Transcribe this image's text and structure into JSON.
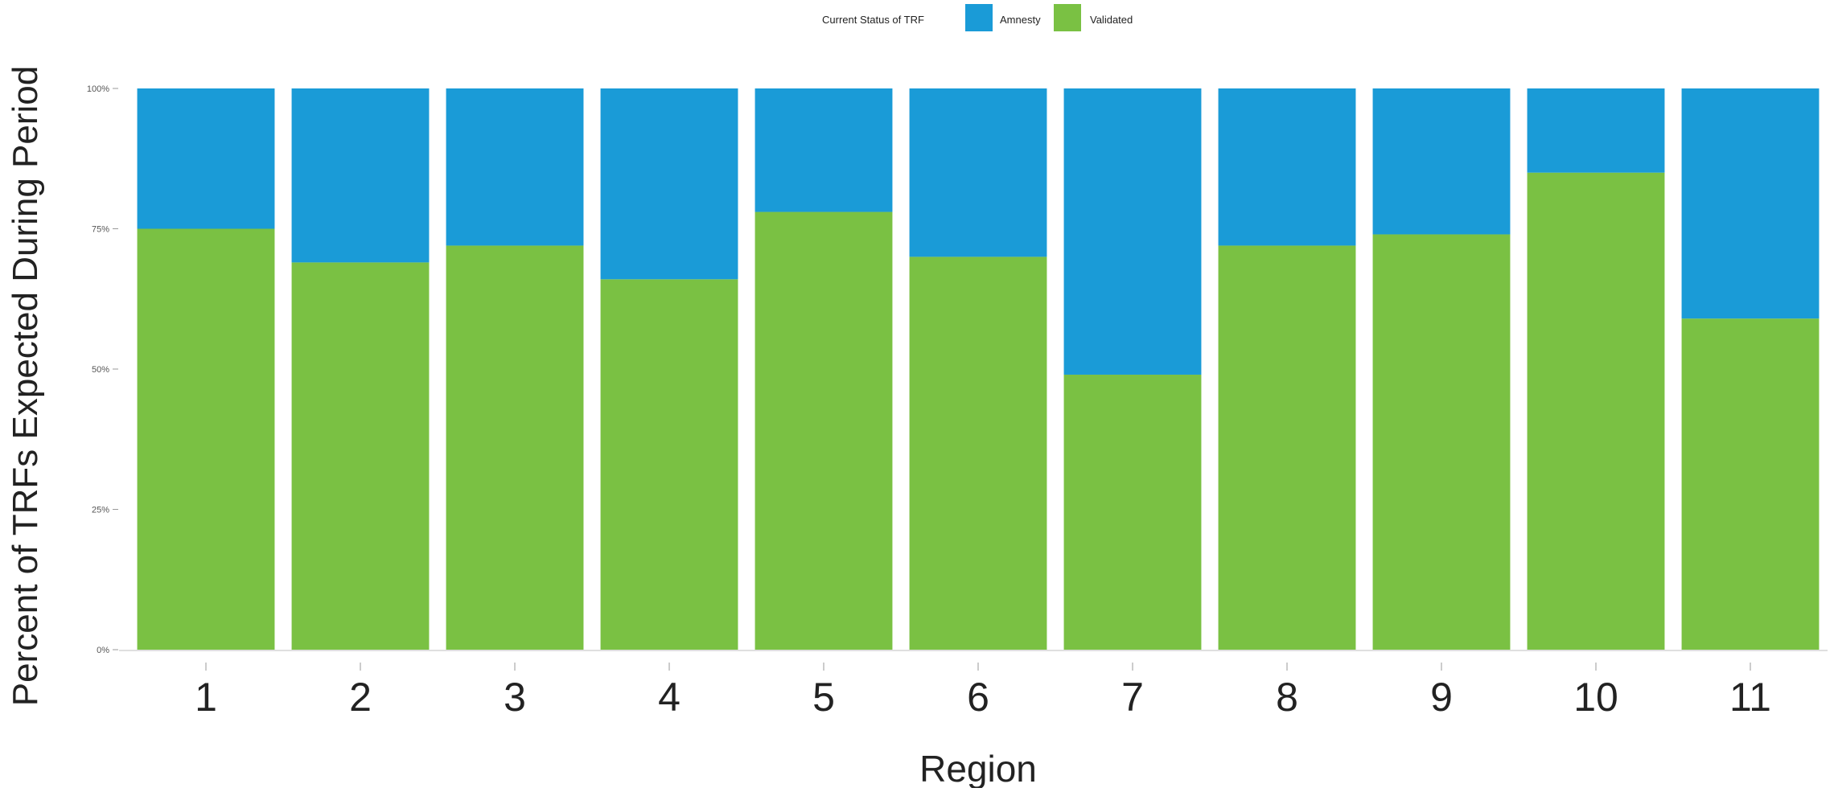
{
  "chart_data": {
    "type": "bar",
    "stacked": true,
    "categories": [
      "1",
      "2",
      "3",
      "4",
      "5",
      "6",
      "7",
      "8",
      "9",
      "10",
      "11"
    ],
    "series": [
      {
        "name": "Validated",
        "color": "#7ac143",
        "values": [
          75,
          69,
          72,
          66,
          78,
          70,
          49,
          72,
          74,
          85,
          59
        ]
      },
      {
        "name": "Amnesty",
        "color": "#1a9bd7",
        "values": [
          25,
          31,
          28,
          34,
          22,
          30,
          51,
          28,
          26,
          15,
          41
        ]
      }
    ],
    "xlabel": "Region",
    "ylabel": "Percent of TRFs Expected During Period",
    "ylim": [
      0,
      100
    ],
    "yticks": [
      "0%",
      "25%",
      "50%",
      "75%",
      "100%"
    ],
    "ytick_values": [
      0,
      25,
      50,
      75,
      100
    ],
    "legend": {
      "title": "Current Status of TRF",
      "position": "top",
      "order": [
        "Amnesty",
        "Validated"
      ]
    },
    "grid": false
  }
}
